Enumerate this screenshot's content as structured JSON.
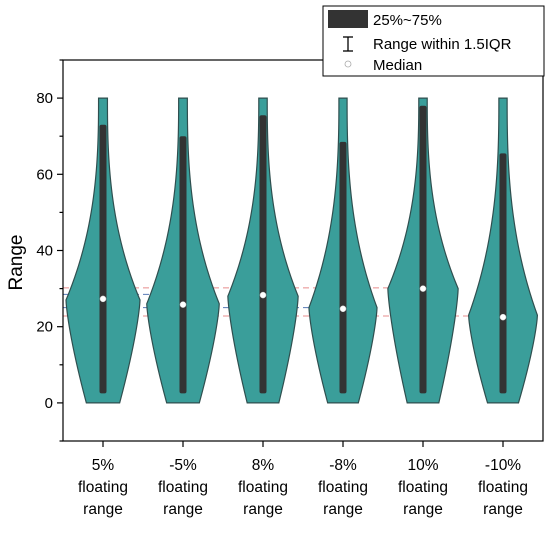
{
  "chart_data": {
    "type": "violin",
    "ylabel": "Range",
    "xlabel": "",
    "ylim": [
      -10,
      90
    ],
    "yticks": [
      0,
      20,
      40,
      60,
      80
    ],
    "grid": false,
    "legend_placement": "top-right",
    "legend": [
      {
        "kind": "box",
        "label": "25%~75%"
      },
      {
        "kind": "whisker",
        "label": "Range within 1.5IQR"
      },
      {
        "kind": "median",
        "label": "Median"
      }
    ],
    "violin_color": "#3a9e9a",
    "violin_edge_color": "#2f4f4f",
    "box_color": "#333333",
    "median_color": "#ffffff",
    "reference_line_colors": [
      "#1f4e9e",
      "#e06666"
    ],
    "categories": [
      {
        "label_lines": [
          "5%",
          "floating",
          "range"
        ],
        "median": 27.3,
        "q1": 2.5,
        "q3": 73.0,
        "min": 0,
        "max": 80,
        "bulge_center": 27,
        "bulge_width": 1.0
      },
      {
        "label_lines": [
          "-5%",
          "floating",
          "range"
        ],
        "median": 25.8,
        "q1": 2.5,
        "q3": 70.0,
        "min": 0,
        "max": 80,
        "bulge_center": 26,
        "bulge_width": 0.98
      },
      {
        "label_lines": [
          "8%",
          "floating",
          "range"
        ],
        "median": 28.3,
        "q1": 2.5,
        "q3": 75.5,
        "min": 0,
        "max": 80,
        "bulge_center": 28,
        "bulge_width": 0.95
      },
      {
        "label_lines": [
          "-8%",
          "floating",
          "range"
        ],
        "median": 24.7,
        "q1": 2.5,
        "q3": 68.5,
        "min": 0,
        "max": 80,
        "bulge_center": 25,
        "bulge_width": 0.92
      },
      {
        "label_lines": [
          "10%",
          "floating",
          "range"
        ],
        "median": 30.0,
        "q1": 2.5,
        "q3": 78.0,
        "min": 0,
        "max": 80,
        "bulge_center": 30,
        "bulge_width": 0.95
      },
      {
        "label_lines": [
          "-10%",
          "floating",
          "range"
        ],
        "median": 22.5,
        "q1": 2.5,
        "q3": 65.5,
        "min": 0,
        "max": 80,
        "bulge_center": 23,
        "bulge_width": 0.93
      }
    ],
    "reference_lines": [
      {
        "color_index": 0,
        "y": 28.5,
        "from_cat": 0,
        "to_cat": 1
      },
      {
        "color_index": 0,
        "y": 25.0,
        "from_cat": 0,
        "to_cat": 3
      },
      {
        "color_index": 1,
        "y": 30.2,
        "from_cat": 0,
        "to_cat": 4
      },
      {
        "color_index": 1,
        "y": 22.8,
        "from_cat": 0,
        "to_cat": 5
      }
    ]
  }
}
